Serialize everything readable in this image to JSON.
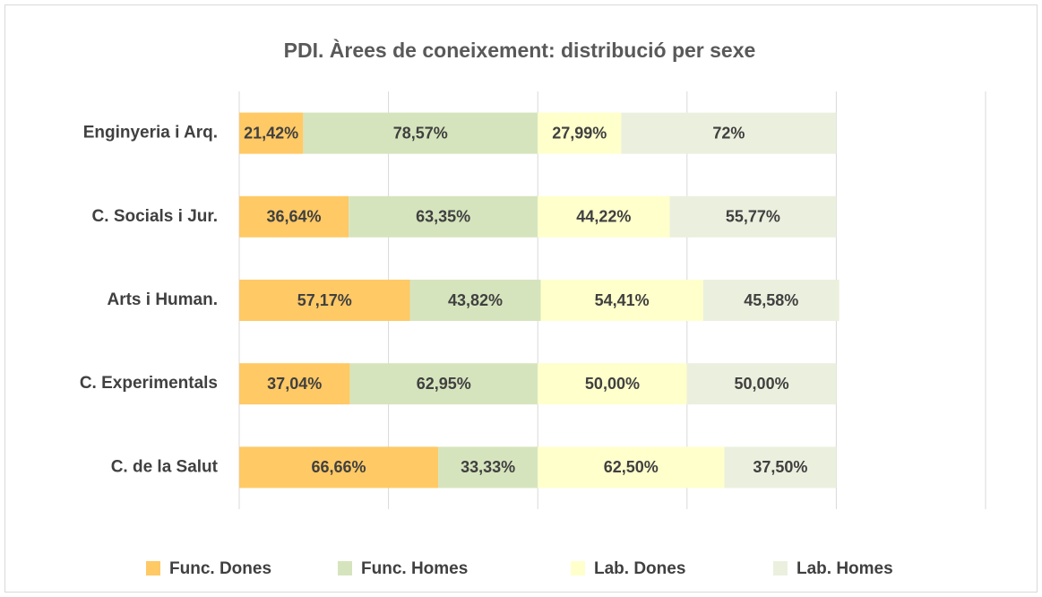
{
  "chart_data": {
    "type": "stacked_bar_horizontal",
    "title": "PDI. Àrees de coneixement: distribució per sexe",
    "categories": [
      "Enginyeria i Arq.",
      "C. Socials i Jur.",
      "Arts i Human.",
      "C. Experimentals",
      "C. de la Salut"
    ],
    "series": [
      {
        "name": "Func. Dones",
        "color": "#ffc965",
        "values": [
          21.42,
          36.64,
          57.17,
          37.04,
          66.66
        ],
        "value_labels": [
          "21,42%",
          "36,64%",
          "57,17%",
          "37,04%",
          "66,66%"
        ]
      },
      {
        "name": "Func. Homes",
        "color": "#d6e4bd",
        "values": [
          78.57,
          63.35,
          43.82,
          62.95,
          33.33
        ],
        "value_labels": [
          "78,57%",
          "63,35%",
          "43,82%",
          "62,95%",
          "33,33%"
        ]
      },
      {
        "name": "Lab. Dones",
        "color": "#ffffcc",
        "values": [
          27.99,
          44.22,
          54.41,
          50.0,
          62.5
        ],
        "value_labels": [
          "27,99%",
          "44,22%",
          "54,41%",
          "50,00%",
          "62,50%"
        ]
      },
      {
        "name": "Lab. Homes",
        "color": "#ebf0de",
        "values": [
          72,
          55.77,
          45.58,
          50.0,
          37.5
        ],
        "value_labels": [
          "72%",
          "55,77%",
          "45,58%",
          "50,00%",
          "37,50%"
        ]
      }
    ],
    "xlim": [
      0,
      250
    ],
    "xticks": [
      0,
      50,
      100,
      150,
      200,
      250
    ],
    "grid": true,
    "legend": "bottom"
  }
}
